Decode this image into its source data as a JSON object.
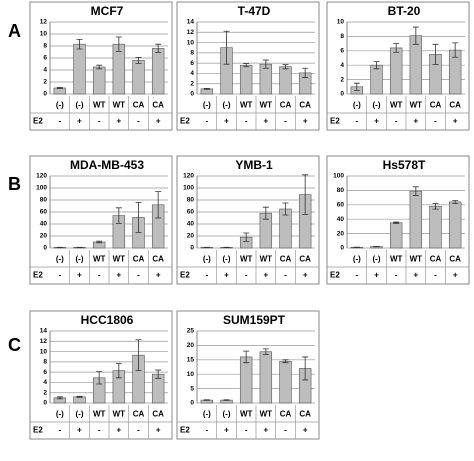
{
  "panel_labels": [
    "A",
    "B",
    "C"
  ],
  "chart_data": [
    {
      "type": "bar",
      "title": "MCF7",
      "categories": [
        "(-)",
        "(-)",
        "WT",
        "WT",
        "CA",
        "CA"
      ],
      "row_label": "E2",
      "row_values": [
        "-",
        "+",
        "-",
        "+",
        "-",
        "+"
      ],
      "values": [
        1.0,
        8.3,
        4.5,
        8.3,
        5.6,
        7.6
      ],
      "errors": [
        0.1,
        0.8,
        0.3,
        1.2,
        0.5,
        0.7
      ],
      "color": "#bdbdbd",
      "ylim": [
        0,
        12
      ],
      "yticks": [
        0,
        2,
        4,
        6,
        8,
        10,
        12
      ],
      "grid": true
    },
    {
      "type": "bar",
      "title": "T-47D",
      "categories": [
        "(-)",
        "(-)",
        "WT",
        "WT",
        "CA",
        "CA"
      ],
      "row_label": "E2",
      "row_values": [
        "-",
        "+",
        "-",
        "+",
        "-",
        "+"
      ],
      "values": [
        1.0,
        9.0,
        5.6,
        5.8,
        5.3,
        4.1
      ],
      "errors": [
        0.1,
        3.2,
        0.3,
        0.8,
        0.4,
        0.9
      ],
      "color": "#bdbdbd",
      "ylim": [
        0,
        14
      ],
      "yticks": [
        0,
        2,
        4,
        6,
        8,
        10,
        12,
        14
      ],
      "grid": true
    },
    {
      "type": "bar",
      "title": "BT-20",
      "categories": [
        "(-)",
        "(-)",
        "WT",
        "WT",
        "CA",
        "CA"
      ],
      "row_label": "E2",
      "row_values": [
        "-",
        "+",
        "-",
        "+",
        "-",
        "+"
      ],
      "values": [
        1.0,
        4.0,
        6.4,
        8.1,
        5.5,
        6.1
      ],
      "errors": [
        0.5,
        0.5,
        0.6,
        1.2,
        1.4,
        1.0
      ],
      "color": "#bdbdbd",
      "ylim": [
        0,
        10
      ],
      "yticks": [
        0,
        2,
        4,
        6,
        8,
        10
      ],
      "grid": true
    },
    {
      "type": "bar",
      "title": "MDA-MB-453",
      "categories": [
        "(-)",
        "(-)",
        "WT",
        "WT",
        "CA",
        "CA"
      ],
      "row_label": "E2",
      "row_values": [
        "-",
        "+",
        "-",
        "+",
        "-",
        "+"
      ],
      "values": [
        1,
        1,
        10,
        54,
        51,
        72
      ],
      "errors": [
        0.2,
        0.3,
        1.5,
        13,
        25,
        22
      ],
      "color": "#bdbdbd",
      "ylim": [
        0,
        120
      ],
      "yticks": [
        0,
        20,
        40,
        60,
        80,
        100,
        120
      ],
      "grid": true
    },
    {
      "type": "bar",
      "title": "YMB-1",
      "categories": [
        "(-)",
        "(-)",
        "WT",
        "WT",
        "CA",
        "CA"
      ],
      "row_label": "E2",
      "row_values": [
        "-",
        "+",
        "-",
        "+",
        "-",
        "+"
      ],
      "values": [
        1,
        1,
        18,
        58,
        65,
        89
      ],
      "errors": [
        0.2,
        0.3,
        7,
        10,
        10,
        33
      ],
      "color": "#bdbdbd",
      "ylim": [
        0,
        120
      ],
      "yticks": [
        0,
        20,
        40,
        60,
        80,
        100,
        120
      ],
      "grid": true
    },
    {
      "type": "bar",
      "title": "Hs578T",
      "categories": [
        "(-)",
        "(-)",
        "WT",
        "WT",
        "CA",
        "CA"
      ],
      "row_label": "E2",
      "row_values": [
        "-",
        "+",
        "-",
        "+",
        "-",
        "+"
      ],
      "values": [
        1,
        2,
        35,
        79,
        58,
        64
      ],
      "errors": [
        0.2,
        0.3,
        1,
        6,
        4,
        2
      ],
      "color": "#bdbdbd",
      "ylim": [
        0,
        100
      ],
      "yticks": [
        0,
        20,
        40,
        60,
        80,
        100
      ],
      "grid": true
    },
    {
      "type": "bar",
      "title": "HCC1806",
      "categories": [
        "(-)",
        "(-)",
        "WT",
        "WT",
        "CA",
        "CA"
      ],
      "row_label": "E2",
      "row_values": [
        "-",
        "+",
        "-",
        "+",
        "-",
        "+"
      ],
      "values": [
        1.0,
        1.2,
        4.9,
        6.3,
        9.3,
        5.6
      ],
      "errors": [
        0.2,
        0.1,
        1.2,
        1.4,
        3.0,
        0.8
      ],
      "color": "#bdbdbd",
      "ylim": [
        0,
        14
      ],
      "yticks": [
        0,
        2,
        4,
        6,
        8,
        10,
        12,
        14
      ],
      "grid": true
    },
    {
      "type": "bar",
      "title": "SUM159PT",
      "categories": [
        "(-)",
        "(-)",
        "WT",
        "WT",
        "CA",
        "CA"
      ],
      "row_label": "E2",
      "row_values": [
        "-",
        "+",
        "-",
        "+",
        "-",
        "+"
      ],
      "values": [
        1,
        1,
        16,
        17.8,
        14.5,
        12
      ],
      "errors": [
        0.1,
        0.1,
        2,
        1,
        0.5,
        4
      ],
      "color": "#bdbdbd",
      "ylim": [
        0,
        25
      ],
      "yticks": [
        0,
        5,
        10,
        15,
        20,
        25
      ],
      "grid": true
    }
  ]
}
